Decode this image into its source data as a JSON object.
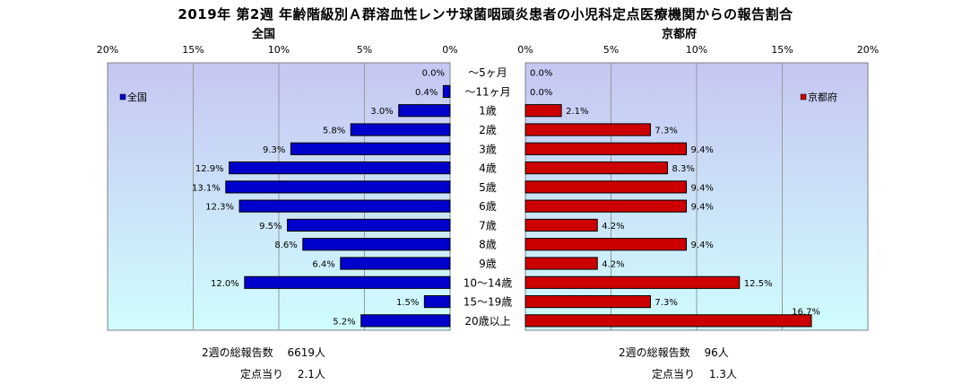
{
  "title": "2019年 第2週 年齢階級別Ａ群溶血性レンサ球菌咽頭炎患者の小児科定点医療機関からの報告割合",
  "chart_data": [
    {
      "type": "bar",
      "orientation": "horizontal",
      "title": "全国",
      "categories": [
        "～5ヶ月",
        "～11ヶ月",
        "1歳",
        "2歳",
        "3歳",
        "4歳",
        "5歳",
        "6歳",
        "7歳",
        "8歳",
        "9歳",
        "10～14歳",
        "15～19歳",
        "20歳以上"
      ],
      "series": [
        {
          "name": "全国",
          "values": [
            0.0,
            0.4,
            3.0,
            5.8,
            9.3,
            12.9,
            13.1,
            12.3,
            9.5,
            8.6,
            6.4,
            12.0,
            1.5,
            5.2
          ],
          "color": "#0000cc"
        }
      ],
      "data_labels": [
        "0.0%",
        "0.4%",
        "3.0%",
        "5.8%",
        "9.3%",
        "12.9%",
        "13.1%",
        "12.3%",
        "9.5%",
        "8.6%",
        "6.4%",
        "12.0%",
        "1.5%",
        "5.2%"
      ],
      "tick_labels": [
        "20%",
        "15%",
        "10%",
        "5%",
        "0%"
      ],
      "xlim": [
        0,
        20
      ],
      "direction": "reversed",
      "grid": true,
      "legend": "top-left"
    },
    {
      "type": "bar",
      "orientation": "horizontal",
      "title": "京都府",
      "categories": [
        "～5ヶ月",
        "～11ヶ月",
        "1歳",
        "2歳",
        "3歳",
        "4歳",
        "5歳",
        "6歳",
        "7歳",
        "8歳",
        "9歳",
        "10～14歳",
        "15～19歳",
        "20歳以上"
      ],
      "series": [
        {
          "name": "京都府",
          "values": [
            0.0,
            0.0,
            2.1,
            7.3,
            9.4,
            8.3,
            9.4,
            9.4,
            4.2,
            9.4,
            4.2,
            12.5,
            7.3,
            16.7
          ],
          "color": "#cc0000"
        }
      ],
      "data_labels": [
        "0.0%",
        "0.0%",
        "2.1%",
        "7.3%",
        "9.4%",
        "8.3%",
        "9.4%",
        "9.4%",
        "4.2%",
        "9.4%",
        "4.2%",
        "12.5%",
        "7.3%",
        "16.7%"
      ],
      "tick_labels": [
        "0%",
        "5%",
        "10%",
        "15%",
        "20%"
      ],
      "xlim": [
        0,
        20
      ],
      "grid": true,
      "legend": "top-right"
    }
  ],
  "stats": {
    "national": {
      "total": "2週の総報告数　 6619人",
      "per_site": "定点当り　 2.1人"
    },
    "kyoto": {
      "total": "2週の総報告数　 96人",
      "per_site": "定点当り　 1.3人"
    }
  },
  "colors": {
    "plot_bg_top": "#c6c6f2",
    "plot_bg_bottom": "#cffdfd",
    "national": "#0000cc",
    "kyoto": "#cc0000"
  }
}
